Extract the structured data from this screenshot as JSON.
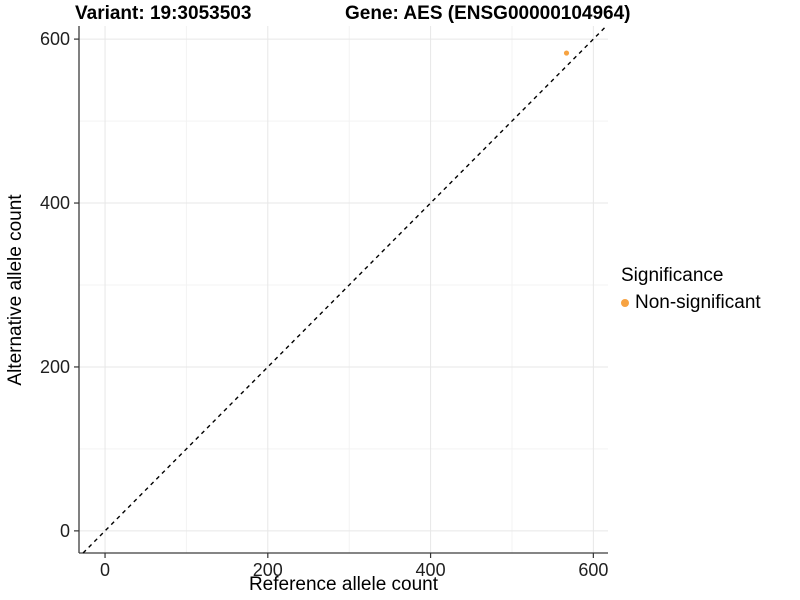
{
  "title": {
    "variant": "Variant: 19:3053503",
    "gene": "Gene: AES (ENSG00000104964)"
  },
  "colors": {
    "background": "#FFFFFF",
    "point_orange": "#F7A342",
    "grid_major": "#E7E7E7",
    "grid_minor": "#F3F3F3",
    "axis_line": "#3C3C3C",
    "tick_mark": "#333333",
    "identity_line": "#000000"
  },
  "chart_data": {
    "type": "scatter",
    "title_left": "Variant: 19:3053503",
    "title_right": "Gene: AES (ENSG00000104964)",
    "xlabel": "Reference allele count",
    "ylabel": "Alternative allele count",
    "xlim": [
      -32,
      618
    ],
    "ylim": [
      -27,
      616
    ],
    "xticks": [
      0,
      200,
      400,
      600
    ],
    "xticks_minor": [
      100,
      300,
      500
    ],
    "yticks": [
      0,
      200,
      400,
      600
    ],
    "yticks_minor": [
      100,
      300,
      500
    ],
    "grid": "major+minor",
    "legend": {
      "title": "Significance",
      "position": "right",
      "items": [
        {
          "label": "Non-significant",
          "color": "#F7A342"
        }
      ]
    },
    "series": [
      {
        "name": "Non-significant",
        "color": "#F7A342",
        "marker": "circle",
        "marker_radius_px": 2.6,
        "points": [
          {
            "x": 567,
            "y": 583
          }
        ]
      }
    ],
    "identity_line": {
      "slope": 1,
      "intercept": 0,
      "style": "dashed",
      "color": "#000000"
    }
  }
}
